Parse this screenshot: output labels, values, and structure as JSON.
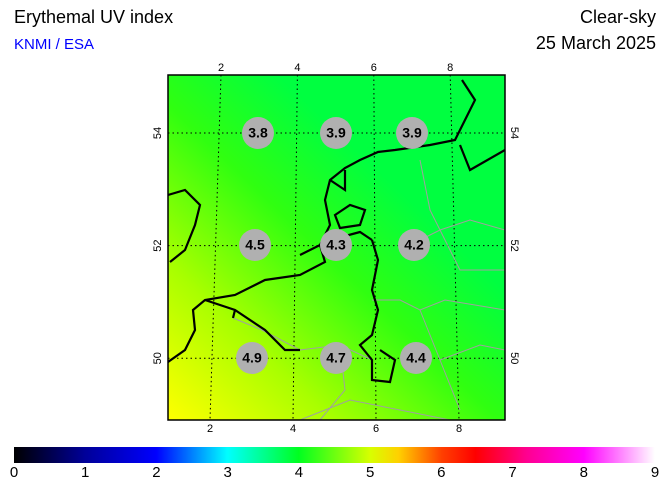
{
  "header": {
    "title": "Erythemal UV index",
    "source": "KNMI / ESA",
    "sky": "Clear-sky",
    "date": "25 March 2025"
  },
  "map": {
    "lon_ticks_top": [
      2,
      4,
      6,
      8
    ],
    "lon_ticks_bottom": [
      2,
      4,
      6,
      8
    ],
    "lat_ticks_left": [
      54,
      52,
      50
    ],
    "lat_ticks_right": [
      54,
      52,
      50
    ],
    "uv_values": [
      [
        3.8,
        3.9,
        3.9
      ],
      [
        4.5,
        4.3,
        4.2
      ],
      [
        4.9,
        4.7,
        4.4
      ]
    ]
  },
  "colorbar": {
    "labels": [
      0,
      1,
      2,
      3,
      4,
      5,
      6,
      7,
      8,
      9
    ]
  }
}
